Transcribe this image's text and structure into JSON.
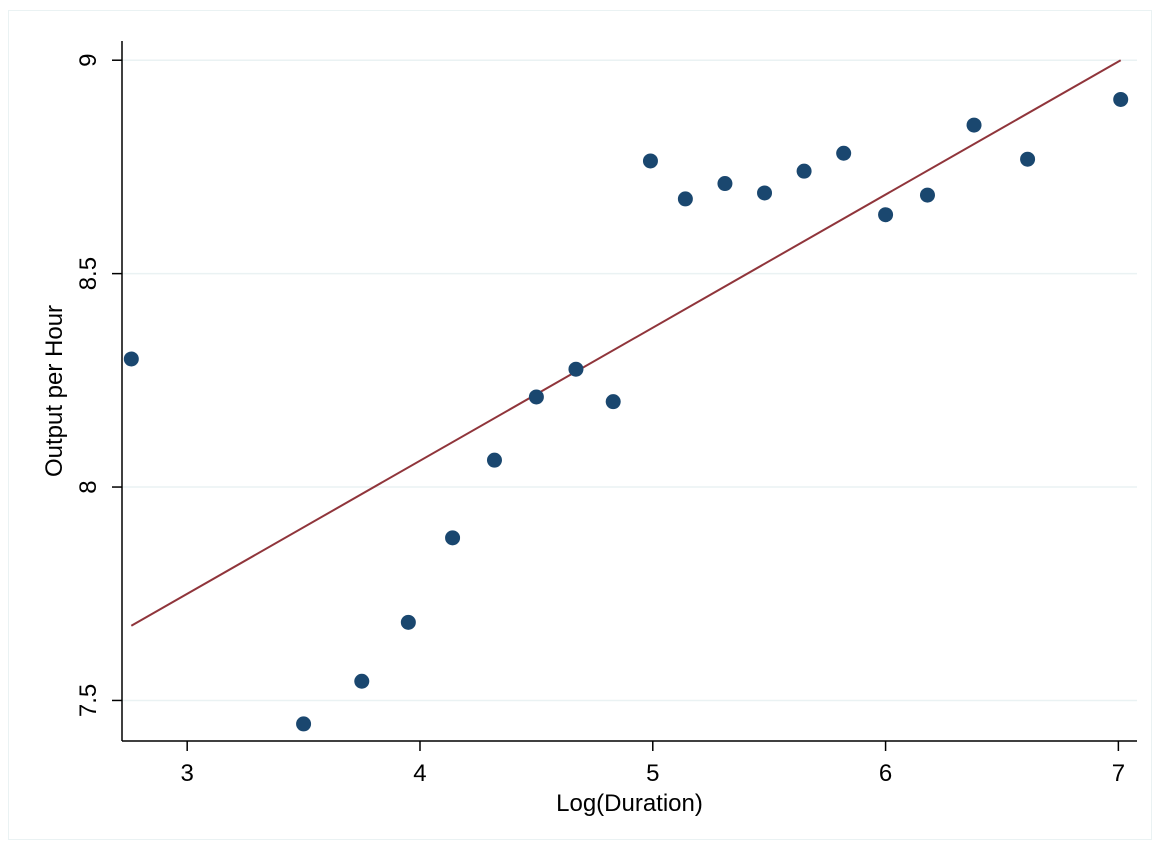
{
  "chart_data": {
    "type": "scatter",
    "title": "",
    "xlabel": "Log(Duration)",
    "ylabel": "Output per Hour",
    "xlim": [
      2.72,
      7.08
    ],
    "ylim": [
      7.405,
      9.045
    ],
    "xticks": [
      3,
      4,
      5,
      6,
      7
    ],
    "yticks": [
      7.5,
      8,
      8.5,
      9
    ],
    "xtick_labels": [
      "3",
      "4",
      "5",
      "6",
      "7"
    ],
    "ytick_labels": [
      "7.5",
      "8",
      "8.5",
      "9"
    ],
    "grid": "horizontal",
    "series": [
      {
        "type": "scatter",
        "color": "#1a476f",
        "points": [
          {
            "x": 2.76,
            "y": 8.3
          },
          {
            "x": 3.5,
            "y": 7.445
          },
          {
            "x": 3.75,
            "y": 7.545
          },
          {
            "x": 3.95,
            "y": 7.683
          },
          {
            "x": 4.14,
            "y": 7.881
          },
          {
            "x": 4.32,
            "y": 8.063
          },
          {
            "x": 4.5,
            "y": 8.211
          },
          {
            "x": 4.67,
            "y": 8.276
          },
          {
            "x": 4.83,
            "y": 8.2
          },
          {
            "x": 4.99,
            "y": 8.764
          },
          {
            "x": 5.14,
            "y": 8.675
          },
          {
            "x": 5.31,
            "y": 8.711
          },
          {
            "x": 5.48,
            "y": 8.689
          },
          {
            "x": 5.65,
            "y": 8.74
          },
          {
            "x": 5.82,
            "y": 8.782
          },
          {
            "x": 6.0,
            "y": 8.638
          },
          {
            "x": 6.18,
            "y": 8.684
          },
          {
            "x": 6.38,
            "y": 8.848
          },
          {
            "x": 6.61,
            "y": 8.768
          },
          {
            "x": 7.01,
            "y": 8.908
          }
        ]
      },
      {
        "type": "line",
        "color": "#90353b",
        "points": [
          {
            "x": 2.76,
            "y": 7.675
          },
          {
            "x": 7.01,
            "y": 9.0
          }
        ]
      }
    ]
  }
}
